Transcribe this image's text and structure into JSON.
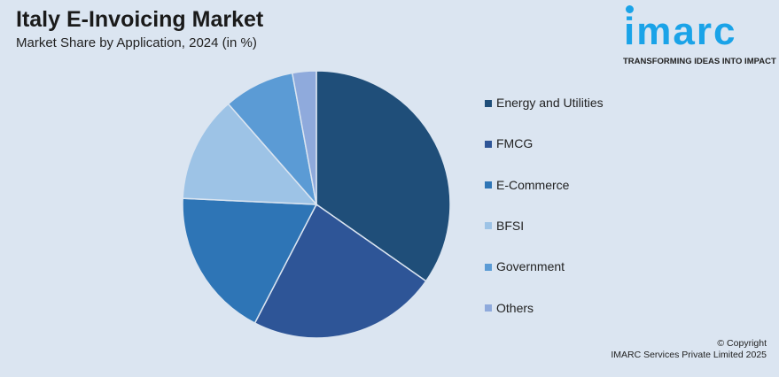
{
  "header": {
    "title": "Italy E-Invoicing Market",
    "subtitle": "Market Share by Application, 2024 (in %)"
  },
  "logo": {
    "text": "imarc",
    "tagline": "TRANSFORMING IDEAS INTO IMPACT"
  },
  "footer": {
    "line1": "© Copyright",
    "line2": "IMARC Services Private Limited 2025"
  },
  "chart_data": {
    "type": "pie",
    "title": "Italy E-Invoicing Market",
    "subtitle": "Market Share by Application, 2024 (in %)",
    "legend_position": "right",
    "start": "12 o'clock, clockwise",
    "slices": [
      {
        "name": "Energy and Utilities",
        "value": 34.9,
        "color": "#1f4e79"
      },
      {
        "name": "FMCG",
        "value": 23.0,
        "color": "#2e5597"
      },
      {
        "name": "E-Commerce",
        "value": 18.2,
        "color": "#2e75b6"
      },
      {
        "name": "BFSI",
        "value": 12.9,
        "color": "#9dc3e6"
      },
      {
        "name": "Government",
        "value": 8.6,
        "color": "#5b9bd5"
      },
      {
        "name": "Others",
        "value": 2.9,
        "color": "#8faadc"
      }
    ]
  }
}
